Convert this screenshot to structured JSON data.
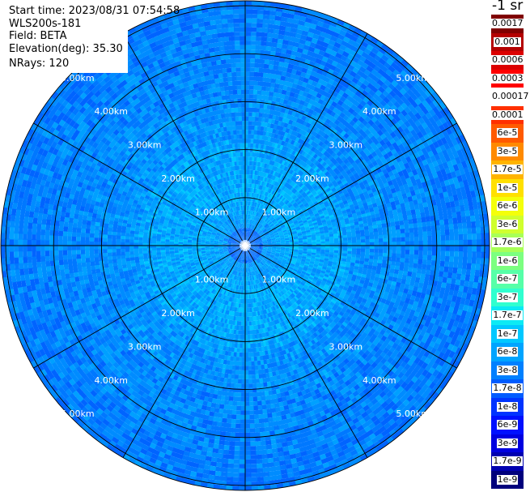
{
  "info": {
    "start_time": "Start time: 2023/08/31 07:54:58",
    "instrument": "WLS200s-181",
    "field": "Field: BETA",
    "elevation": "Elevation(deg): 35.30",
    "nrays": "NRays: 120"
  },
  "unit_label": "-1 sr",
  "chart_data": {
    "type": "heatmap",
    "projection": "polar",
    "field": "BETA",
    "range_rings_km": [
      1,
      2,
      3,
      4,
      5
    ],
    "ring_labels": [
      "1.00km",
      "2.00km",
      "3.00km",
      "4.00km",
      "5.00km"
    ],
    "nrays": 120,
    "radial_lines_every_deg": 30,
    "colorbar": {
      "labels": [
        "0.0017",
        "0.001",
        "0.0006",
        "0.0003",
        "0.00017",
        "0.0001",
        "6e-5",
        "3e-5",
        "1.7e-5",
        "1e-5",
        "6e-6",
        "3e-6",
        "1.7e-6",
        "1e-6",
        "6e-7",
        "3e-7",
        "1.7e-7",
        "1e-7",
        "6e-8",
        "3e-8",
        "1.7e-8",
        "1e-8",
        "6e-9",
        "3e-9",
        "1.7e-9",
        "1e-9"
      ],
      "colors": [
        "#800000",
        "#b40000",
        "#dc0000",
        "#ff0000",
        "#ffffff",
        "#ff3000",
        "#ff5a00",
        "#ff8a00",
        "#ffb400",
        "#ffe000",
        "#f4ff0a",
        "#d0ff2e",
        "#a8ff57",
        "#7cff80",
        "#56ffa8",
        "#30ffcf",
        "#0ceaf4",
        "#00c8ff",
        "#00a4ff",
        "#0080ff",
        "#005cff",
        "#0034ff",
        "#0010ff",
        "#0000e0",
        "#0000b0",
        "#00007c"
      ]
    }
  }
}
